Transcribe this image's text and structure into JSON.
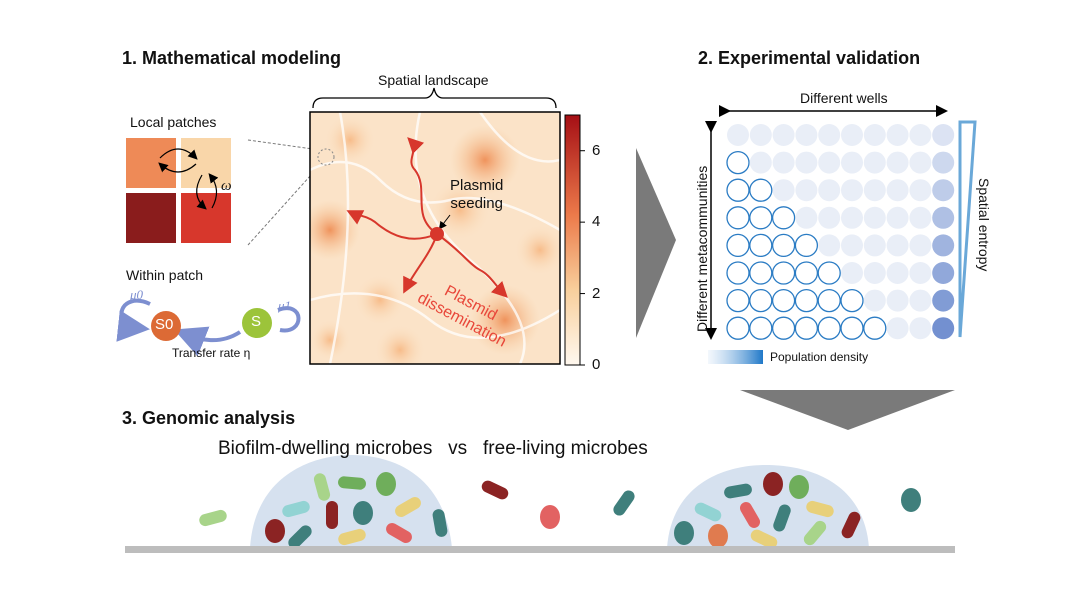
{
  "panel1": {
    "title": "1. Mathematical modeling",
    "local_patches": "Local patches",
    "omega": "ω",
    "within_patch": "Within patch",
    "mu0": "μ0",
    "mu1": "μ1",
    "s0": "S0",
    "s": "S",
    "transfer_rate": "Transfer rate η",
    "spatial_landscape": "Spatial landscape",
    "plasmid_seeding": [
      "Plasmid",
      "seeding"
    ],
    "plasmid_dissemination": [
      "Plasmid",
      "dissemination"
    ],
    "colorbar_ticks": [
      "0",
      "2",
      "4",
      "6"
    ],
    "colorbar_range": [
      0,
      7
    ],
    "patch_colors": [
      "#ee8a57",
      "#f9d6a9",
      "#8a1c1c",
      "#d7372c"
    ]
  },
  "panel2": {
    "title": "2. Experimental validation",
    "x_label": "Different wells",
    "y_label": "Different metacommunities",
    "right_label": "Spatial entropy",
    "legend_label": "Population density",
    "columns": 10,
    "rows": 8
  },
  "panel3": {
    "title": "3. Genomic analysis",
    "subtitle": "Biofilm-dwelling microbes   vs   free-living microbes",
    "microbe_colors": {
      "teal": "#3f7f7c",
      "darkred": "#8b2323",
      "green": "#6fae5b",
      "lightgreen": "#a8d48a",
      "cyan": "#92d3d3",
      "yellow": "#e8d07a",
      "red": "#e26262",
      "orange": "#e07b4f"
    }
  }
}
